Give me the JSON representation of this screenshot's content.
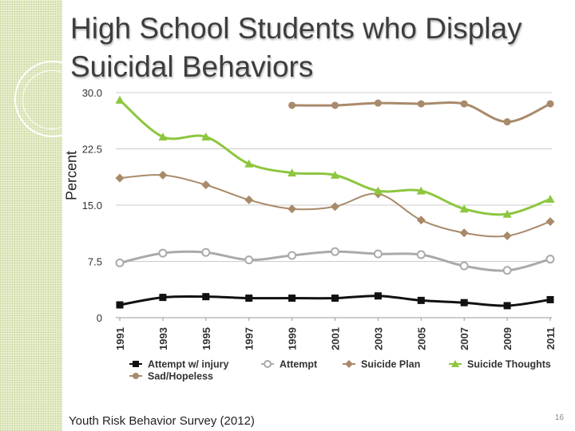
{
  "slide": {
    "title_lines": [
      "High School Students who Display",
      "Suicidal Behaviors"
    ],
    "source": "Youth Risk Behavior Survey (2012)",
    "page_number": "16"
  },
  "chart_data": {
    "type": "line",
    "title": "",
    "ylabel": "Percent",
    "xlabel": "",
    "x": [
      "1991",
      "1993",
      "1995",
      "1997",
      "1999",
      "2001",
      "2003",
      "2005",
      "2007",
      "2009",
      "2011"
    ],
    "ylim": [
      0,
      30
    ],
    "yticks": [
      0,
      7.5,
      15,
      22.5,
      30
    ],
    "ytick_labels": [
      "0",
      "7.5",
      "15.0",
      "22.5",
      "30.0"
    ],
    "grid": "horizontal",
    "legend_position": "bottom",
    "series": [
      {
        "name": "Attempt w/ injury",
        "color": "#111111",
        "marker": "square",
        "line_width": 3,
        "values": [
          1.7,
          2.7,
          2.8,
          2.6,
          2.6,
          2.6,
          2.9,
          2.3,
          2.0,
          1.6,
          2.4
        ]
      },
      {
        "name": "Attempt",
        "color": "#aaaaaa",
        "marker": "circle-open",
        "line_width": 3,
        "values": [
          7.3,
          8.6,
          8.7,
          7.7,
          8.3,
          8.8,
          8.5,
          8.4,
          6.9,
          6.3,
          7.8
        ]
      },
      {
        "name": "Suicide Plan",
        "color": "#a88a6a",
        "marker": "diamond",
        "line_width": 2,
        "values": [
          18.6,
          19.0,
          17.7,
          15.7,
          14.5,
          14.8,
          16.5,
          13.0,
          11.3,
          10.9,
          12.8
        ]
      },
      {
        "name": "Suicide Thoughts",
        "color": "#8dc63f",
        "marker": "triangle",
        "line_width": 3,
        "values": [
          29.0,
          24.1,
          24.1,
          20.5,
          19.3,
          19.0,
          16.9,
          16.9,
          14.5,
          13.8,
          15.8
        ]
      },
      {
        "name": "Sad/Hopeless",
        "color": "#a88a6a",
        "marker": "circle",
        "line_width": 3,
        "values": [
          null,
          null,
          null,
          null,
          28.3,
          28.3,
          28.6,
          28.5,
          28.5,
          26.1,
          28.5
        ]
      }
    ]
  }
}
